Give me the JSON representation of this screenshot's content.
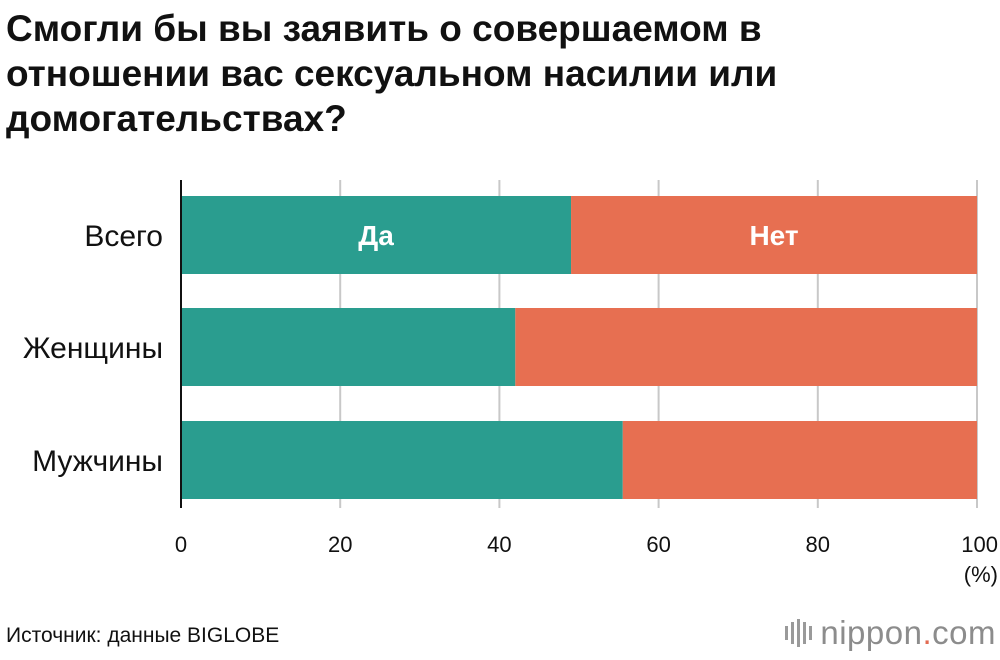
{
  "title": "Смогли бы вы заявить о совершаемом в отношении вас сексуальном насилии или домогательствах?",
  "source": "Источник: данные BIGLOBE",
  "logo": {
    "name": "nippon",
    "dot": ".",
    "suffix": "com"
  },
  "colors": {
    "yes": "#2a9d8f",
    "no": "#e76f51",
    "grid": "#c8c8c8",
    "axis": "#111111"
  },
  "chart_data": {
    "type": "bar",
    "orientation": "horizontal",
    "stacked": true,
    "categories": [
      "Всего",
      "Женщины",
      "Мужчины"
    ],
    "series": [
      {
        "name": "Да",
        "values": [
          49,
          42,
          55.5
        ]
      },
      {
        "name": "Нет",
        "values": [
          51,
          58,
          44.5
        ]
      }
    ],
    "series_labels_shown_on": "Всего",
    "xlim": [
      0,
      100
    ],
    "xticks": [
      "0",
      "20",
      "40",
      "60",
      "80",
      "100"
    ],
    "xunit": "(%)",
    "grid": true
  }
}
